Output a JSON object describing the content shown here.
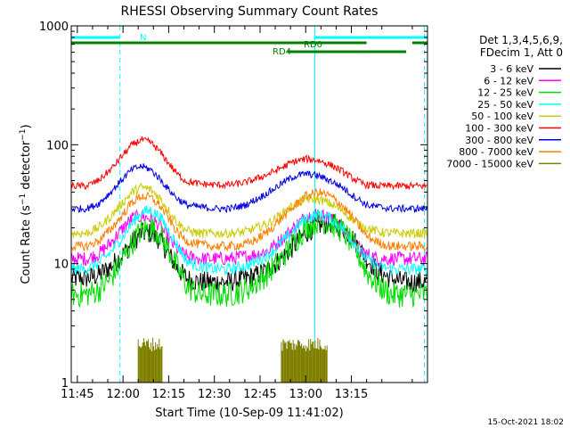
{
  "chart_data": {
    "type": "line",
    "title": "RHESSI Observing Summary Count Rates",
    "xlabel": "Start Time (10-Sep-09 11:41:02)",
    "ylabel": "Count Rate (s⁻¹ detector⁻¹)",
    "ylabel_main": "Count Rate (s",
    "ylabel_sup1": "−1",
    "ylabel_mid": " detector",
    "ylabel_sup2": "−1",
    "ylabel_end": ")",
    "y_scale": "log",
    "ylim": [
      1,
      1000
    ],
    "xlim_minutes": [
      -17,
      100
    ],
    "x_ticks": [
      {
        "minute": -15,
        "label": "11:45"
      },
      {
        "minute": 0,
        "label": "12:00"
      },
      {
        "minute": 15,
        "label": "12:15"
      },
      {
        "minute": 30,
        "label": "12:30"
      },
      {
        "minute": 45,
        "label": "12:45"
      },
      {
        "minute": 60,
        "label": "13:00"
      },
      {
        "minute": 75,
        "label": "13:15"
      }
    ],
    "y_ticks": [
      {
        "value": 1,
        "label": "1"
      },
      {
        "value": 10,
        "label": "10"
      },
      {
        "value": 100,
        "label": "100"
      },
      {
        "value": 1000,
        "label": "1000"
      }
    ],
    "legend_header_1": "Det 1,3,4,5,6,9,",
    "legend_header_2": "FDecim 1, Att 0",
    "legend_position": "right",
    "x_minutes": [
      -17,
      -12,
      -8,
      -4,
      0,
      3,
      6,
      9,
      12,
      15,
      18,
      21,
      25,
      30,
      35,
      40,
      44,
      48,
      52,
      56,
      60,
      64,
      68,
      72,
      75,
      78,
      80,
      84,
      88,
      92,
      96,
      100
    ],
    "series": [
      {
        "name": "3 - 6 keV",
        "color": "#000000",
        "values": [
          7.5,
          7.5,
          8,
          9.5,
          12,
          15,
          18,
          18,
          16,
          12,
          9,
          7.5,
          7,
          7,
          7,
          7.5,
          8,
          9,
          11,
          14,
          18,
          21,
          22,
          20,
          17,
          13,
          11,
          8.5,
          7.5,
          7,
          7,
          7
        ]
      },
      {
        "name": "6 - 12 keV",
        "color": "#ff00ff",
        "values": [
          11,
          11,
          12,
          15,
          20,
          24,
          25,
          24,
          21,
          16,
          13,
          11.5,
          11,
          11,
          11,
          11.5,
          12,
          13,
          16,
          20,
          25,
          26,
          24,
          20,
          16,
          13,
          12,
          11,
          11,
          11,
          11,
          11
        ]
      },
      {
        "name": "12 - 25 keV",
        "color": "#00dd00",
        "values": [
          5.5,
          5.5,
          6,
          7.5,
          11,
          15,
          19,
          20,
          18,
          13,
          9,
          6.5,
          5.5,
          5.5,
          5.5,
          6,
          7,
          8.5,
          11,
          15,
          20,
          23,
          22,
          19,
          15,
          11,
          8.5,
          6.5,
          5.5,
          5.5,
          5.5,
          5.5
        ]
      },
      {
        "name": "25 - 50 keV",
        "color": "#00ffff",
        "values": [
          9,
          9,
          10,
          12.5,
          17,
          22,
          27,
          28,
          25,
          19,
          14,
          10.5,
          9.5,
          9,
          9,
          9.5,
          10.5,
          12,
          15,
          19,
          24,
          26,
          24,
          20,
          16,
          12.5,
          11,
          9.5,
          9,
          9,
          9,
          9
        ]
      },
      {
        "name": "50 - 100 keV",
        "color": "#cccc00",
        "values": [
          18,
          18,
          20,
          25,
          33,
          40,
          44,
          42,
          36,
          28,
          22,
          19,
          18,
          18,
          18,
          18.5,
          20,
          22,
          26,
          31,
          35,
          35,
          32,
          28,
          24,
          21,
          20,
          18.5,
          18,
          18,
          18,
          18
        ]
      },
      {
        "name": "100 - 300 keV",
        "color": "#ff0000",
        "values": [
          45,
          45,
          50,
          62,
          82,
          100,
          110,
          105,
          88,
          70,
          56,
          49,
          47,
          46,
          46,
          48,
          52,
          57,
          64,
          72,
          76,
          74,
          68,
          60,
          53,
          48,
          46,
          45,
          45,
          45,
          45,
          45
        ]
      },
      {
        "name": "300 - 800 keV",
        "color": "#0000dd",
        "values": [
          29,
          29,
          32,
          40,
          52,
          62,
          66,
          62,
          52,
          42,
          35,
          31,
          30,
          29,
          29,
          31,
          35,
          40,
          47,
          54,
          57,
          55,
          50,
          44,
          38,
          34,
          31,
          30,
          29,
          29,
          29,
          29
        ]
      },
      {
        "name": "800 - 7000 keV",
        "color": "#ff8000",
        "values": [
          14,
          14,
          15.5,
          19.5,
          26,
          33,
          37,
          36,
          31,
          24,
          18,
          15.5,
          14.5,
          14,
          14,
          14.5,
          16,
          19,
          24,
          30,
          37,
          40,
          37,
          31,
          25,
          20,
          17,
          15,
          14,
          14,
          14,
          14
        ]
      },
      {
        "name": "7000 - 15000 keV",
        "color": "#808000",
        "bursts": [
          [
            5,
            13
          ],
          [
            52,
            67
          ]
        ],
        "burst_level": 2.1
      }
    ],
    "annotations": [
      {
        "text": "N",
        "color": "#00ffff"
      },
      {
        "text": "RD0",
        "color": "#008000"
      },
      {
        "text": "RD4",
        "color": "#008000"
      }
    ],
    "night_bars": [
      [
        -17,
        -1
      ],
      [
        63,
        100
      ]
    ],
    "rd0_bars": [
      [
        -17,
        80
      ],
      [
        95,
        100
      ]
    ],
    "rd4_bars": [
      [
        54,
        93
      ]
    ],
    "saa_lines_minutes": [
      -17,
      -1,
      63,
      99
    ],
    "timestamp": "15-Oct-2021 18:02"
  }
}
